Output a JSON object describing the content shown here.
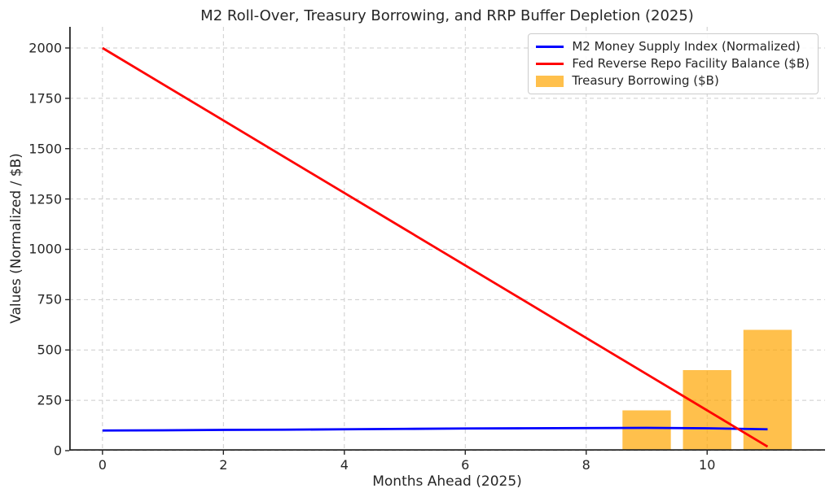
{
  "title": "M2 Roll-Over, Treasury Borrowing, and RRP Buffer Depletion (2025)",
  "chart_data": {
    "type": "mixed",
    "title": "M2 Roll-Over, Treasury Borrowing, and RRP Buffer Depletion (2025)",
    "xlabel": "Months Ahead (2025)",
    "ylabel": "Values (Normalized / $B)",
    "x": [
      0,
      1,
      2,
      3,
      4,
      5,
      6,
      7,
      8,
      9,
      10,
      11
    ],
    "xticks": [
      0,
      2,
      4,
      6,
      8,
      10
    ],
    "yticks": [
      0,
      250,
      500,
      750,
      1000,
      1250,
      1500,
      1750,
      2000
    ],
    "xlim": [
      -0.55,
      11.95
    ],
    "ylim": [
      0,
      2105
    ],
    "grid": true,
    "grid_style": "dashed",
    "grid_color": "#cccccc",
    "legend_position": "upper right",
    "series": [
      {
        "name": "M2 Money Supply Index (Normalized)",
        "type": "line",
        "color": "#0000ff",
        "line_width": 2.8,
        "values": [
          100,
          101,
          103,
          104,
          106,
          108,
          110,
          111,
          112,
          113,
          111,
          106
        ]
      },
      {
        "name": "Fed Reverse Repo Facility Balance ($B)",
        "type": "line",
        "color": "#ff0000",
        "line_width": 2.8,
        "values": [
          2000,
          1820,
          1640,
          1460,
          1280,
          1100,
          920,
          740,
          560,
          380,
          200,
          20
        ]
      },
      {
        "name": "Treasury Borrowing ($B)",
        "type": "bar",
        "color": "#ffa500",
        "opacity": 0.7,
        "bar_width": 0.8,
        "x": [
          9,
          10,
          11
        ],
        "values": [
          200,
          400,
          600
        ]
      }
    ],
    "axis_color": "#262626"
  }
}
